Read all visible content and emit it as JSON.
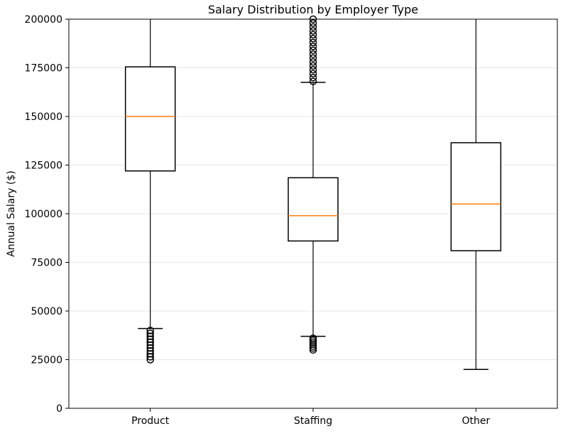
{
  "chart_data": {
    "type": "box",
    "title": "Salary Distribution by Employer Type",
    "xlabel": "",
    "ylabel": "Annual Salary ($)",
    "ylim": [
      0,
      200000
    ],
    "yticks": [
      0,
      25000,
      50000,
      75000,
      100000,
      125000,
      150000,
      175000,
      200000
    ],
    "grid": "y",
    "categories": [
      "Product",
      "Staffing",
      "Other"
    ],
    "boxes": [
      {
        "category": "Product",
        "whisker_low": 41000,
        "q1": 122000,
        "median": 150000,
        "q3": 175500,
        "whisker_high": 200000,
        "outliers": [
          25000,
          26500,
          28000,
          29500,
          31000,
          32500,
          34000,
          35500,
          37000,
          38500,
          40000
        ]
      },
      {
        "category": "Staffing",
        "whisker_low": 37000,
        "q1": 86000,
        "median": 99000,
        "q3": 118500,
        "whisker_high": 167500,
        "outliers_low": [
          30000,
          31000,
          32000,
          33000,
          34000,
          35000,
          36000
        ],
        "outliers_high": [
          168000,
          170000,
          172000,
          174000,
          176000,
          178000,
          180000,
          182000,
          184000,
          186000,
          188000,
          190000,
          192000,
          194000,
          196000,
          198000,
          200000
        ]
      },
      {
        "category": "Other",
        "whisker_low": 20000,
        "q1": 81000,
        "median": 105000,
        "q3": 136500,
        "whisker_high": 200000,
        "outliers": []
      }
    ],
    "colors": {
      "box": "#000000",
      "median": "#ff7f0e",
      "grid": "#e6e6e6"
    }
  }
}
